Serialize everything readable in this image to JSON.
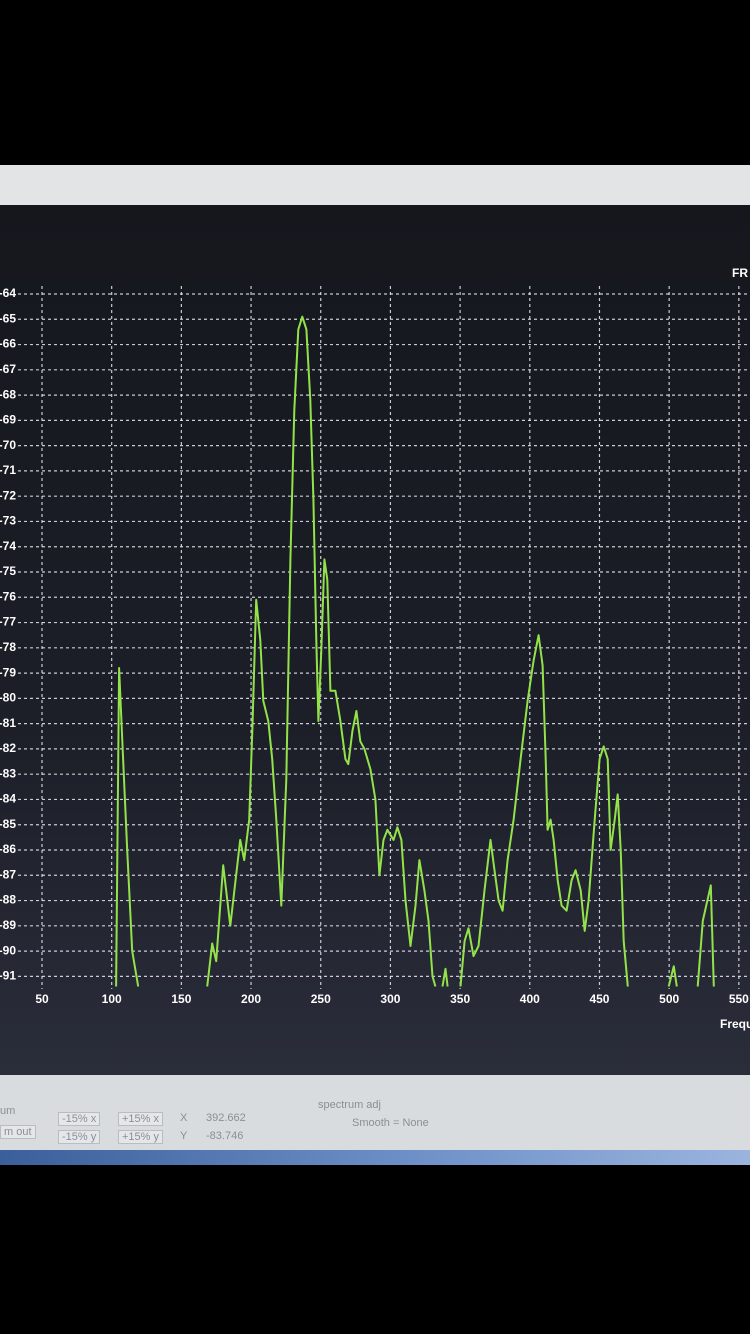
{
  "chart_data": {
    "type": "line",
    "title": "FR",
    "x_label": "Frequ",
    "color": "#93e24a",
    "x": [
      103.2,
      105.3,
      108.2,
      111.1,
      114.7,
      119.0,
      null,
      168.5,
      172.1,
      175.0,
      180.0,
      185.1,
      192.2,
      195.1,
      198.7,
      200.9,
      203.7,
      206.6,
      208.8,
      212.4,
      215.2,
      218.1,
      221.7,
      225.3,
      228.2,
      231.0,
      233.9,
      236.8,
      239.7,
      242.5,
      244.7,
      246.8,
      248.3,
      250.4,
      252.6,
      254.7,
      256.9,
      260.5,
      264.1,
      267.7,
      269.8,
      272.7,
      275.6,
      278.4,
      281.3,
      285.6,
      289.2,
      292.1,
      295.0,
      297.8,
      302.2,
      305.0,
      307.9,
      310.8,
      314.4,
      318.0,
      320.8,
      324.4,
      327.3,
      330.2,
      332.3,
      null,
      337.4,
      339.5,
      341.0,
      null,
      350.3,
      353.2,
      356.0,
      359.6,
      363.2,
      367.5,
      371.8,
      374.7,
      377.6,
      380.5,
      384.1,
      388.4,
      393.4,
      398.4,
      402.7,
      406.3,
      409.2,
      411.4,
      412.8,
      414.9,
      417.1,
      420.0,
      422.8,
      426.4,
      430.0,
      432.9,
      436.5,
      439.4,
      442.2,
      446.6,
      450.1,
      453.0,
      455.9,
      458.0,
      460.9,
      463.1,
      465.2,
      467.4,
      470.3,
      null,
      499.7,
      503.3,
      505.5,
      null,
      520.5,
      524.1,
      529.9,
      532.0
    ],
    "values": [
      -91.4,
      -78.8,
      -82.4,
      -86.0,
      -90.0,
      -91.4,
      null,
      -91.4,
      -89.7,
      -90.4,
      -86.6,
      -89.0,
      -85.6,
      -86.4,
      -84.8,
      -81.3,
      -76.1,
      -77.7,
      -80.1,
      -80.9,
      -82.4,
      -84.8,
      -88.2,
      -83.2,
      -74.5,
      -68.6,
      -65.4,
      -64.9,
      -65.4,
      -68.2,
      -72.1,
      -77.7,
      -80.9,
      -78.1,
      -74.5,
      -75.3,
      -79.7,
      -79.7,
      -80.9,
      -82.4,
      -82.6,
      -81.3,
      -80.5,
      -81.7,
      -82.0,
      -82.8,
      -84.0,
      -87.0,
      -85.6,
      -85.2,
      -85.6,
      -85.1,
      -85.6,
      -88.0,
      -89.8,
      -88.2,
      -86.4,
      -87.6,
      -88.8,
      -91.0,
      -91.4,
      null,
      -91.4,
      -90.7,
      -91.4,
      null,
      -91.4,
      -89.6,
      -89.1,
      -90.2,
      -89.8,
      -87.6,
      -85.6,
      -86.8,
      -88.0,
      -88.4,
      -86.4,
      -84.8,
      -82.4,
      -80.1,
      -78.5,
      -77.5,
      -78.7,
      -82.4,
      -85.2,
      -84.8,
      -85.6,
      -87.2,
      -88.2,
      -88.4,
      -87.2,
      -86.8,
      -87.6,
      -89.2,
      -88.0,
      -84.8,
      -82.4,
      -81.9,
      -82.4,
      -86.0,
      -84.8,
      -83.8,
      -86.0,
      -89.6,
      -91.4,
      null,
      -91.4,
      -90.6,
      -91.4,
      null,
      -91.4,
      -88.8,
      -87.4,
      -91.4
    ],
    "xlim": [
      50,
      558
    ],
    "xticks": [
      50,
      100,
      150,
      200,
      250,
      300,
      350,
      400,
      450,
      500,
      550
    ],
    "ylim": [
      -91.5,
      -64
    ],
    "yticks": [
      -91,
      -90,
      -89,
      -88,
      -87,
      -86,
      -85,
      -84,
      -83,
      -82,
      -81,
      -80,
      -79,
      -78,
      -77,
      -76,
      -75,
      -74,
      -73,
      -72,
      -71,
      -70,
      -69,
      -68,
      -67,
      -66,
      -65,
      -64
    ],
    "grid": true
  },
  "status": {
    "left": [
      "um",
      "m out"
    ],
    "buttons": [
      "-15% x",
      "+15% x",
      "-15% y",
      "+15% y"
    ],
    "x_label": "X",
    "x_value": "392.662",
    "y_label": "Y",
    "y_value": "-83.746",
    "spectrum": "spectrum adj",
    "smooth": "Smooth = None"
  }
}
